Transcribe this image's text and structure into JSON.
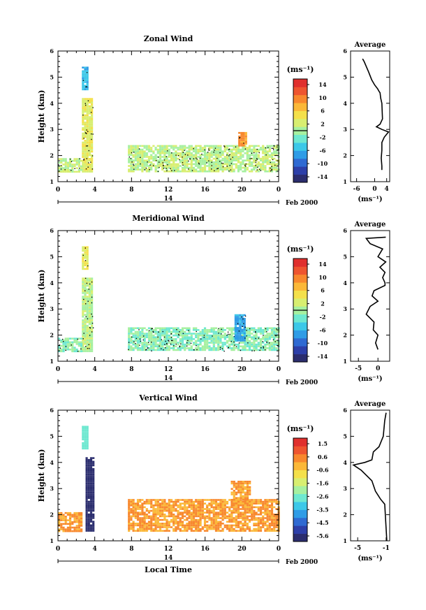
{
  "panels": [
    {
      "key": "zonal",
      "title": "Zonal Wind",
      "ylabel": "Height (km)",
      "yticks": [
        "1",
        "2",
        "3",
        "4",
        "5",
        "6"
      ],
      "xticks": [
        "0",
        "4",
        "8",
        "12",
        "16",
        "20",
        "0"
      ],
      "date_tick": "14",
      "date_label": "Feb 2000",
      "xlabel": "",
      "colorbar_unit": "(ms⁻¹)",
      "colorbar_ticks": [
        "14",
        "10",
        "6",
        "2",
        "-2",
        "-6",
        "-10",
        "-14"
      ],
      "avg_title": "Average",
      "avg_xticks": [
        "-6",
        "0",
        "4"
      ],
      "avg_yticks": [
        "1",
        "2",
        "3",
        "4",
        "5",
        "6"
      ],
      "avg_xlabel": "(ms⁻¹)"
    },
    {
      "key": "meridional",
      "title": "Meridional Wind",
      "ylabel": "Height (km)",
      "yticks": [
        "1",
        "2",
        "3",
        "4",
        "5",
        "6"
      ],
      "xticks": [
        "0",
        "4",
        "8",
        "12",
        "16",
        "20",
        "0"
      ],
      "date_tick": "14",
      "date_label": "Feb 2000",
      "xlabel": "",
      "colorbar_unit": "(ms⁻¹)",
      "colorbar_ticks": [
        "14",
        "10",
        "6",
        "2",
        "-2",
        "-6",
        "-10",
        "-14"
      ],
      "avg_title": "Average",
      "avg_xticks": [
        "-5",
        "0"
      ],
      "avg_yticks": [
        "1",
        "2",
        "3",
        "4",
        "5",
        "6"
      ],
      "avg_xlabel": "(ms⁻¹)"
    },
    {
      "key": "vertical",
      "title": "Vertical Wind",
      "ylabel": "Height (km)",
      "yticks": [
        "1",
        "2",
        "3",
        "4",
        "5",
        "6"
      ],
      "xticks": [
        "0",
        "4",
        "8",
        "12",
        "16",
        "20",
        "0"
      ],
      "date_tick": "14",
      "date_label": "Feb 2000",
      "xlabel": "Local Time",
      "colorbar_unit": "(ms⁻¹)",
      "colorbar_ticks": [
        "1.5",
        "0.6",
        "-0.6",
        "-1.6",
        "-2.6",
        "-3.5",
        "-4.5",
        "-5.6"
      ],
      "avg_title": "Average",
      "avg_xticks": [
        "-5",
        "-1"
      ],
      "avg_yticks": [
        "1",
        "2",
        "3",
        "4",
        "5",
        "6"
      ],
      "avg_xlabel": "(ms⁻¹)"
    }
  ],
  "colors": {
    "colormap": [
      "#2b2d6e",
      "#2d3fa8",
      "#2f6ad2",
      "#2f9ce6",
      "#3cc8e8",
      "#6ee8d0",
      "#a6f0a0",
      "#d8ee70",
      "#f4e04a",
      "#fbb838",
      "#f8882e",
      "#ee5530",
      "#e0302e"
    ],
    "zero_line": "#000000"
  },
  "chart_data": [
    {
      "type": "heatmap",
      "title": "Zonal Wind",
      "ylabel": "Height (km)",
      "xlim": [
        0,
        24
      ],
      "ylim": [
        1,
        6
      ],
      "clim": [
        -14,
        14
      ],
      "regions": [
        {
          "x": [
            2.6,
            3.8
          ],
          "y": [
            1.4,
            4.2
          ],
          "value": 3
        },
        {
          "x": [
            2.6,
            3.2
          ],
          "y": [
            4.5,
            5.4
          ],
          "value": -5
        },
        {
          "x": [
            0.0,
            2.6
          ],
          "y": [
            1.4,
            1.9
          ],
          "value": 1
        },
        {
          "x": [
            7.6,
            23.9
          ],
          "y": [
            1.4,
            2.4
          ],
          "value": 1
        },
        {
          "x": [
            19.6,
            20.4
          ],
          "y": [
            2.4,
            2.9
          ],
          "value": 8
        }
      ],
      "average_profile": {
        "x": [
          -4,
          -3.5,
          -2,
          -1,
          0,
          1,
          1.5,
          1.8,
          2,
          2.4,
          2.6,
          1.8,
          0.6,
          2.4,
          4.6,
          3.2,
          2.4,
          2.4,
          2.2,
          2.4,
          2.4
        ],
        "y": [
          5.7,
          5.6,
          5.2,
          4.9,
          4.7,
          4.55,
          4.45,
          4.4,
          4.2,
          4.0,
          3.4,
          3.2,
          3.1,
          3.0,
          2.9,
          2.7,
          2.5,
          2.2,
          1.9,
          1.6,
          1.45
        ],
        "xlim": [
          -8,
          5
        ]
      }
    },
    {
      "type": "heatmap",
      "title": "Meridional Wind",
      "ylabel": "Height (km)",
      "xlim": [
        0,
        24
      ],
      "ylim": [
        1,
        6
      ],
      "clim": [
        -14,
        14
      ],
      "regions": [
        {
          "x": [
            2.6,
            3.8
          ],
          "y": [
            1.4,
            4.2
          ],
          "value": 1
        },
        {
          "x": [
            2.6,
            3.2
          ],
          "y": [
            4.5,
            5.4
          ],
          "value": 3
        },
        {
          "x": [
            0.0,
            2.6
          ],
          "y": [
            1.4,
            1.9
          ],
          "value": -1
        },
        {
          "x": [
            7.6,
            23.9
          ],
          "y": [
            1.4,
            2.3
          ],
          "value": -1
        },
        {
          "x": [
            19.2,
            20.4
          ],
          "y": [
            1.8,
            2.8
          ],
          "value": -6
        }
      ],
      "average_profile": {
        "x": [
          2,
          -3,
          -2,
          1.2,
          0,
          2,
          0.5,
          1.8,
          1.2,
          1.8,
          1.8,
          -1,
          -1.5,
          0,
          -2,
          -3,
          -1,
          -1.2,
          0,
          -0.6,
          0
        ],
        "y": [
          5.75,
          5.7,
          5.5,
          5.3,
          5.0,
          4.8,
          4.6,
          4.4,
          4.2,
          4.0,
          3.9,
          3.7,
          3.5,
          3.3,
          3.1,
          2.8,
          2.5,
          2.2,
          2.0,
          1.7,
          1.45
        ],
        "xlim": [
          -7,
          3
        ]
      }
    },
    {
      "type": "heatmap",
      "title": "Vertical Wind",
      "ylabel": "Height (km)",
      "xlabel": "Local Time",
      "xlim": [
        0,
        24
      ],
      "ylim": [
        1,
        6
      ],
      "clim": [
        -5.6,
        1.5
      ],
      "regions": [
        {
          "x": [
            3.0,
            3.8
          ],
          "y": [
            1.4,
            4.2
          ],
          "value": -5.5
        },
        {
          "x": [
            2.6,
            3.2
          ],
          "y": [
            4.5,
            5.4
          ],
          "value": -2.6
        },
        {
          "x": [
            0.0,
            2.6
          ],
          "y": [
            1.4,
            2.1
          ],
          "value": -0.1
        },
        {
          "x": [
            7.6,
            23.9
          ],
          "y": [
            1.4,
            2.6
          ],
          "value": -0.1
        },
        {
          "x": [
            18.8,
            20.8
          ],
          "y": [
            2.4,
            3.3
          ],
          "value": -0.1
        }
      ],
      "average_profile": {
        "x": [
          -1,
          -1.2,
          -1.4,
          -2,
          -2.8,
          -3,
          -4,
          -5.6,
          -4.5,
          -3,
          -2.5,
          -1.8,
          -1.2,
          -0.9
        ],
        "y": [
          5.9,
          5.6,
          5.0,
          4.6,
          4.4,
          4.1,
          4.0,
          3.9,
          3.7,
          3.3,
          2.9,
          2.6,
          2.4,
          1.0
        ],
        "xlim": [
          -6,
          -0.5
        ]
      }
    }
  ]
}
